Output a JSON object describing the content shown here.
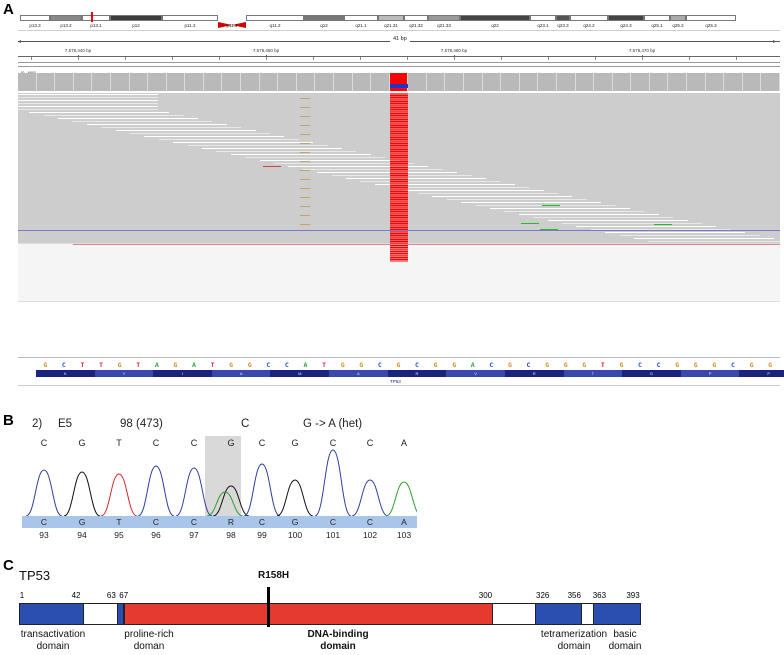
{
  "panels": {
    "a": "A",
    "b": "B",
    "c": "C"
  },
  "igv": {
    "cytobands": [
      {
        "label": "p13.3",
        "color": "#ffffff"
      },
      {
        "label": "p13.2",
        "color": "#888888"
      },
      {
        "label": "p13.1",
        "color": "#ffffff"
      },
      {
        "label": "p12",
        "color": "#3c3c3c"
      },
      {
        "label": "p11.2",
        "color": "#ffffff"
      },
      {
        "label": "p11.1",
        "color": "#cc0000"
      },
      {
        "label": "q11.2",
        "color": "#ffffff"
      },
      {
        "label": "q12",
        "color": "#777777"
      },
      {
        "label": "q21.1",
        "color": "#ffffff"
      },
      {
        "label": "q21.31",
        "color": "#bbbbbb"
      },
      {
        "label": "q21.32",
        "color": "#ffffff"
      },
      {
        "label": "q21.33",
        "color": "#999999"
      },
      {
        "label": "q22",
        "color": "#444444"
      },
      {
        "label": "q23.1",
        "color": "#ffffff"
      },
      {
        "label": "q23.3",
        "color": "#555555"
      },
      {
        "label": "q24.2",
        "color": "#ffffff"
      },
      {
        "label": "q24.3",
        "color": "#444444"
      },
      {
        "label": "q25.1",
        "color": "#ffffff"
      },
      {
        "label": "q25.2",
        "color": "#aaaaaa"
      },
      {
        "label": "q25.3",
        "color": "#ffffff"
      }
    ],
    "span_label": "41 bp",
    "ruler_ticks": [
      "7,578,440 bp",
      "7,578,450 bp",
      "7,578,460 bp",
      "7,578,470 bp"
    ],
    "coverage_range": "[0 - 695]",
    "reference_sequence": [
      "G",
      "C",
      "T",
      "T",
      "G",
      "T",
      "A",
      "G",
      "A",
      "T",
      "G",
      "G",
      "C",
      "C",
      "A",
      "T",
      "G",
      "G",
      "C",
      "G",
      "C",
      "G",
      "G",
      "A",
      "C",
      "G",
      "C",
      "G",
      "G",
      "G",
      "T",
      "G",
      "C",
      "C",
      "G",
      "G",
      "G",
      "C",
      "G",
      "G",
      "G"
    ],
    "base_colors": {
      "A": "#2ca02c",
      "C": "#1f4fd1",
      "G": "#d8891c",
      "T": "#d62728"
    },
    "amino_acids": [
      "K",
      "Y",
      "I",
      "A",
      "M",
      "A",
      "R",
      "V",
      "R",
      "T",
      "G",
      "P",
      "P"
    ],
    "gene_label": "TP53",
    "colors": {
      "coverage": "#b9b9b9",
      "reads": "#cdcdcd",
      "variant": "#ff0000",
      "codon_dark": "#1a237e",
      "codon_light": "#3949ab"
    }
  },
  "sanger": {
    "title": {
      "sample": "2)",
      "exon": "E5",
      "position": "98 (473)",
      "base": "C",
      "change": "G -> A (het)"
    },
    "top_calls": [
      "C",
      "G",
      "T",
      "C",
      "C",
      "G",
      "C",
      "G",
      "C",
      "C",
      "A"
    ],
    "bottom_calls": [
      "C",
      "G",
      "T",
      "C",
      "C",
      "R",
      "C",
      "G",
      "C",
      "C",
      "A"
    ],
    "positions": [
      "93",
      "94",
      "95",
      "96",
      "97",
      "98",
      "99",
      "100",
      "101",
      "102",
      "103"
    ],
    "highlight_index": 5,
    "trace_colors": {
      "A": "#2ca02c",
      "C": "#2f3f9f",
      "G": "#111111",
      "T": "#d62728"
    }
  },
  "protein": {
    "gene": "TP53",
    "mutation": "R158H",
    "mutation_position": 158,
    "length": 393,
    "boundaries": [
      "1",
      "42",
      "63",
      "67",
      "300",
      "326",
      "356",
      "363",
      "393"
    ],
    "domains": [
      {
        "start": 1,
        "end": 42,
        "color": "#2b4fb0"
      },
      {
        "start": 63,
        "end": 67,
        "color": "#2b4fb0"
      },
      {
        "start": 67,
        "end": 300,
        "color": "#e53a2f"
      },
      {
        "start": 326,
        "end": 356,
        "color": "#2b4fb0"
      },
      {
        "start": 363,
        "end": 393,
        "color": "#2b4fb0"
      }
    ],
    "domain_labels": [
      {
        "line1": "transactivation",
        "line2": "domain",
        "bold": false
      },
      {
        "line1": "proline-rich",
        "line2": "doman",
        "bold": false
      },
      {
        "line1": "DNA-binding",
        "line2": "domain",
        "bold": true
      },
      {
        "line1": "tetramerization",
        "line2": "domain",
        "bold": false
      },
      {
        "line1": "basic",
        "line2": "domain",
        "bold": false
      }
    ]
  }
}
